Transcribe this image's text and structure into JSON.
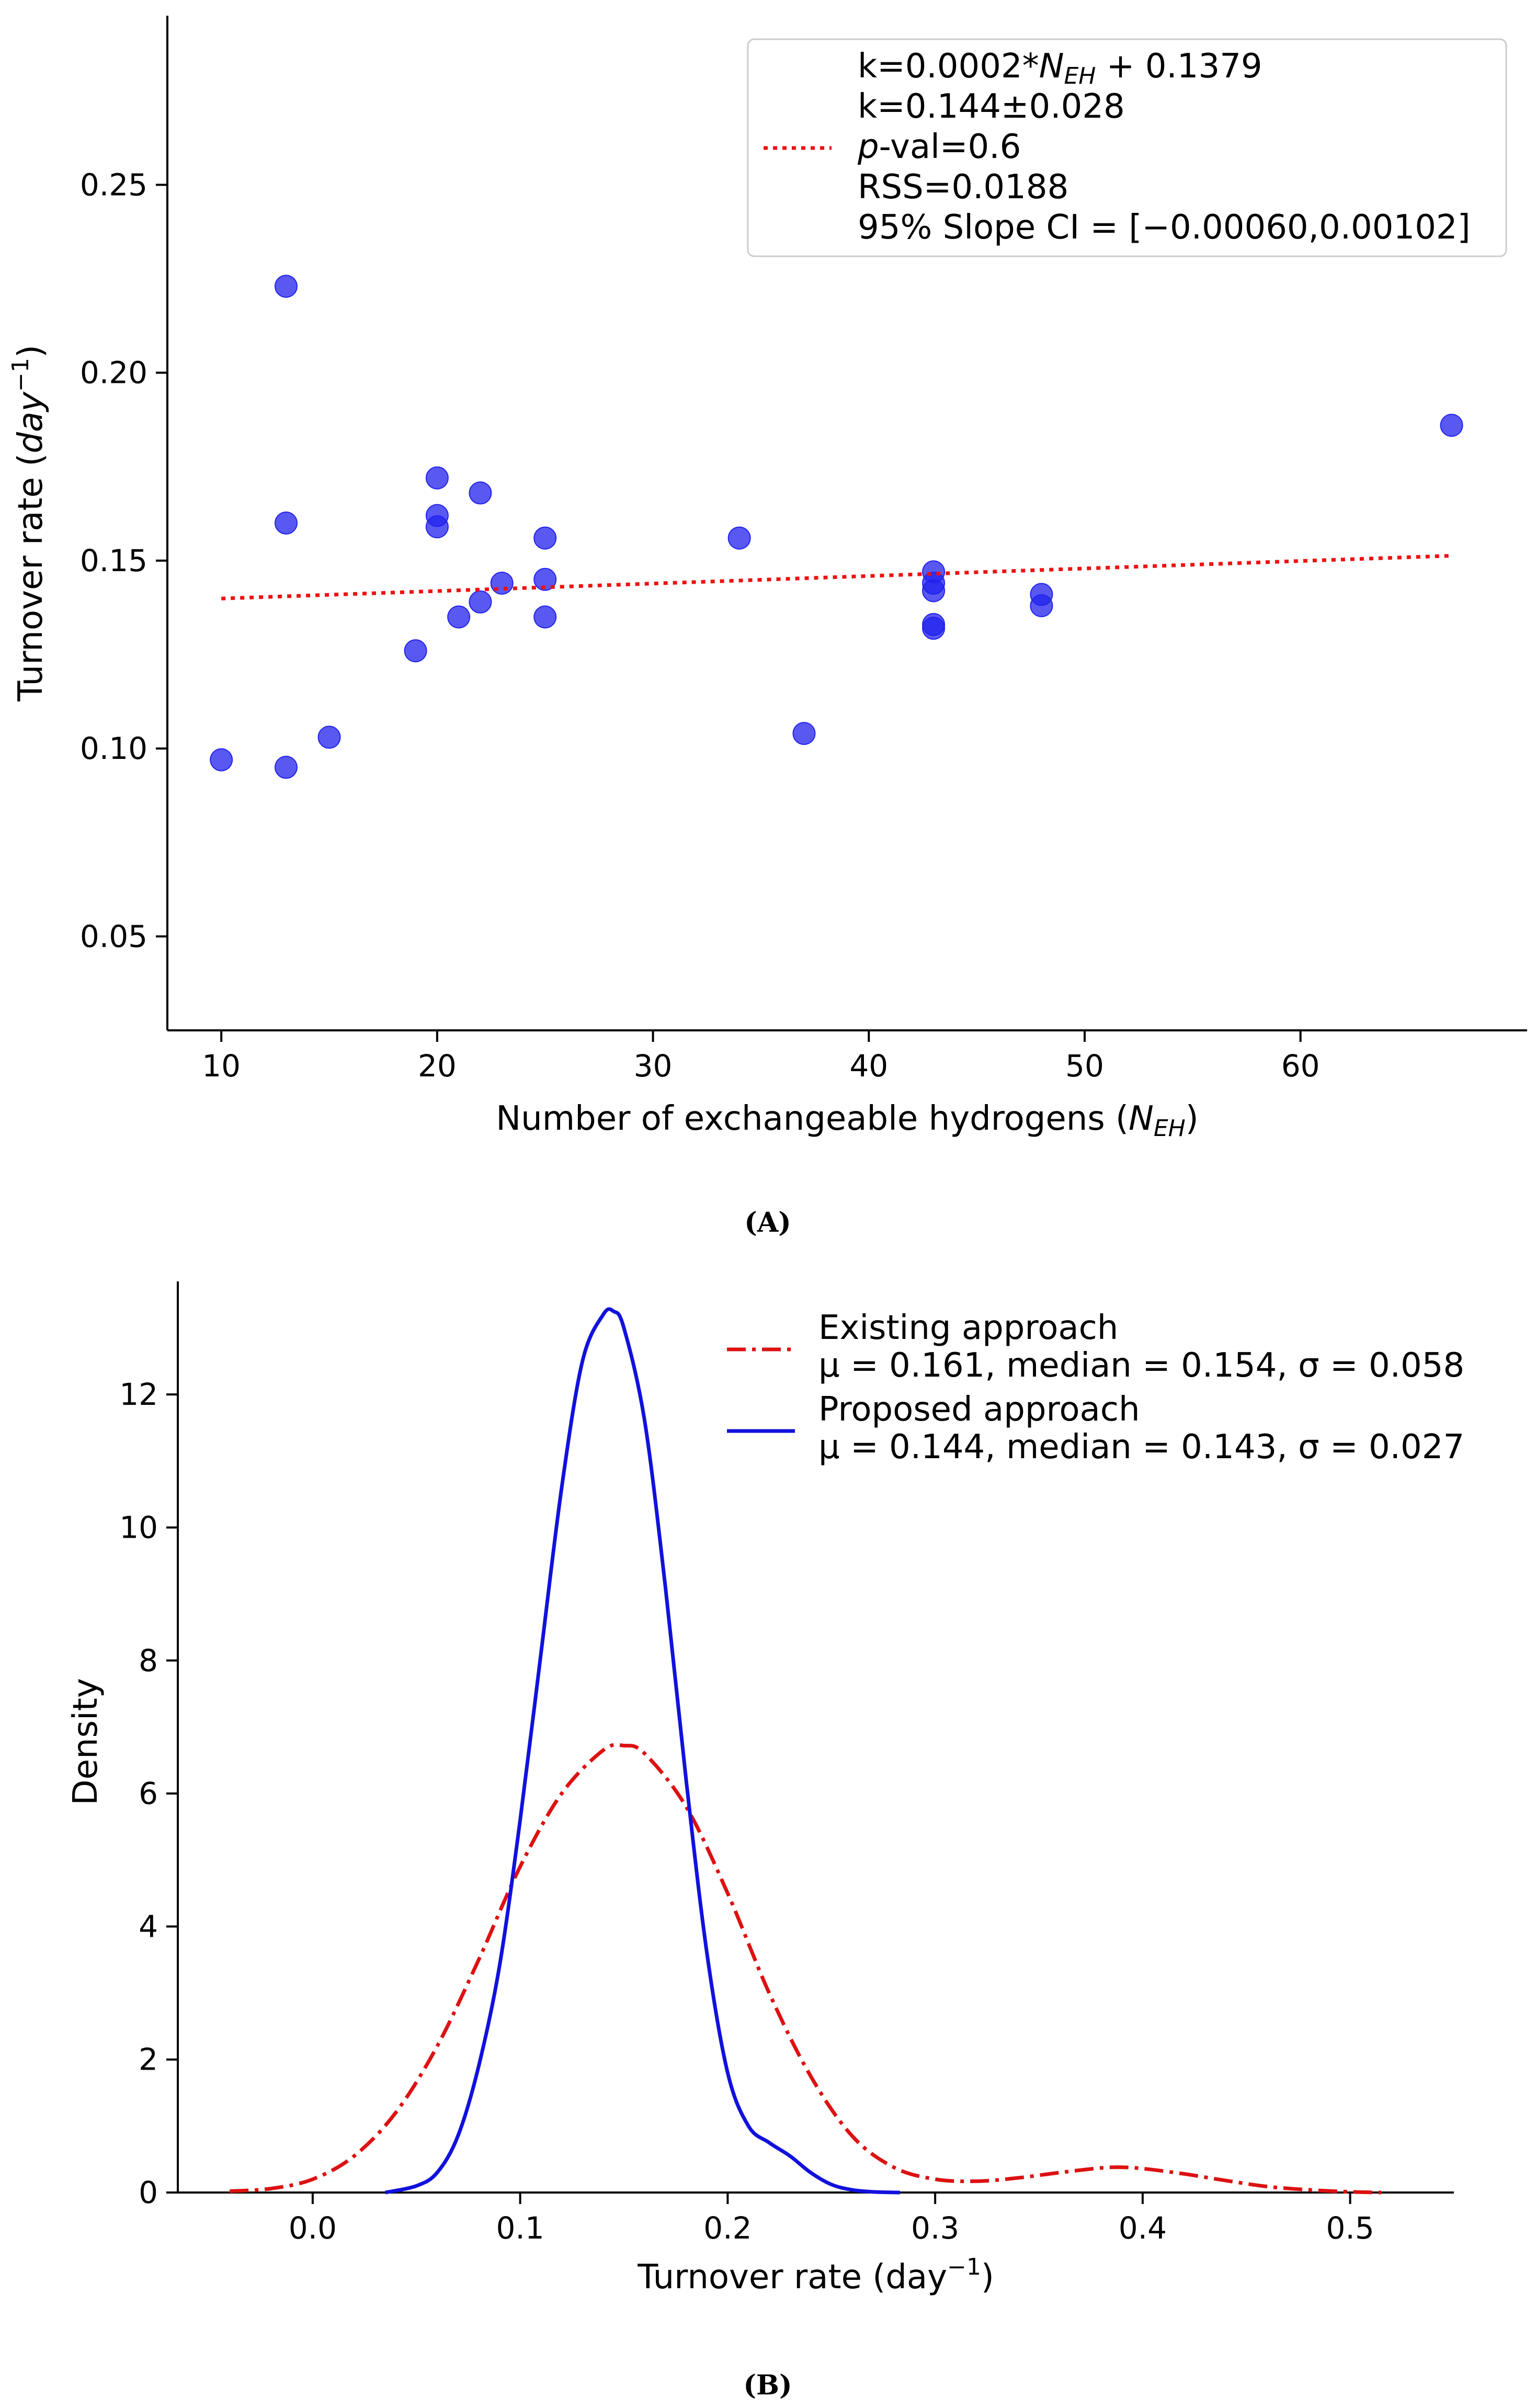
{
  "chart_data": [
    {
      "panel": "(A)",
      "type": "scatter",
      "title": "",
      "xlabel_main": "Number of exchangeable hydrogens (",
      "xlabel_sym": "N",
      "xlabel_sub": "EH",
      "xlabel_end": ")",
      "ylabel_main": "Turnover rate (",
      "ylabel_unit": "day",
      "ylabel_exp": "−1",
      "ylabel_end": ")",
      "xlim": [
        7.5,
        70.5
      ],
      "ylim": [
        0.025,
        0.295
      ],
      "xticks": [
        10,
        20,
        30,
        40,
        50,
        60
      ],
      "xtick_labels": [
        "10",
        "20",
        "30",
        "40",
        "50",
        "60"
      ],
      "yticks": [
        0.05,
        0.1,
        0.15,
        0.2,
        0.25
      ],
      "ytick_labels": [
        "0.05",
        "0.10",
        "0.15",
        "0.20",
        "0.25"
      ],
      "series": [
        {
          "name": "data points",
          "type": "scatter",
          "color": "#2222ee",
          "x": [
            10,
            13,
            13,
            13,
            15,
            19,
            20,
            20,
            20,
            21,
            22,
            22,
            23,
            25,
            25,
            25,
            34,
            37,
            43,
            43,
            43,
            43,
            43,
            48,
            48,
            67
          ],
          "y": [
            0.097,
            0.095,
            0.16,
            0.223,
            0.103,
            0.126,
            0.172,
            0.162,
            0.159,
            0.135,
            0.168,
            0.139,
            0.144,
            0.156,
            0.145,
            0.135,
            0.156,
            0.104,
            0.147,
            0.144,
            0.142,
            0.133,
            0.132,
            0.141,
            0.138,
            0.186
          ]
        },
        {
          "name": "linear fit",
          "type": "line",
          "style": "dotted",
          "color": "#ee1111",
          "slope": 0.0002,
          "intercept": 0.1379,
          "x_range": [
            10,
            67
          ]
        }
      ],
      "legend": {
        "placement": "top-right",
        "line1_pre": "k=0.0002*",
        "line1_sym": "N",
        "line1_sub": "EH",
        "line1_post": " + 0.1379",
        "line2": "k=0.144±0.028",
        "line3_sym": "p",
        "line3_post": "-val=0.6",
        "line4": "RSS=0.0188",
        "line5": "95% Slope CI = [−0.00060,0.00102]"
      }
    },
    {
      "panel": "(B)",
      "type": "line",
      "title": "",
      "xlabel_main": "Turnover rate (day",
      "xlabel_exp": "−1",
      "xlabel_end": ")",
      "ylabel": "Density",
      "xlim": [
        -0.065,
        0.55
      ],
      "ylim": [
        0,
        13.7
      ],
      "xticks": [
        0.0,
        0.1,
        0.2,
        0.3,
        0.4,
        0.5
      ],
      "xtick_labels": [
        "0.0",
        "0.1",
        "0.2",
        "0.3",
        "0.4",
        "0.5"
      ],
      "yticks": [
        0,
        2,
        4,
        6,
        8,
        10,
        12
      ],
      "ytick_labels": [
        "0",
        "2",
        "4",
        "6",
        "8",
        "10",
        "12"
      ],
      "series": [
        {
          "name": "Existing approach",
          "stats": "μ = 0.161, median = 0.154, σ = 0.058",
          "style": "dashdot",
          "color": "#dd1111",
          "x": [
            -0.04,
            -0.02,
            0.0,
            0.02,
            0.04,
            0.06,
            0.08,
            0.1,
            0.12,
            0.14,
            0.15,
            0.16,
            0.18,
            0.2,
            0.22,
            0.24,
            0.26,
            0.28,
            0.3,
            0.32,
            0.34,
            0.36,
            0.38,
            0.39,
            0.4,
            0.42,
            0.44,
            0.46,
            0.48,
            0.5,
            0.515
          ],
          "y": [
            0.02,
            0.06,
            0.2,
            0.55,
            1.2,
            2.2,
            3.5,
            4.9,
            6.0,
            6.65,
            6.72,
            6.6,
            5.8,
            4.5,
            3.0,
            1.75,
            0.85,
            0.38,
            0.2,
            0.17,
            0.22,
            0.3,
            0.37,
            0.38,
            0.36,
            0.28,
            0.18,
            0.09,
            0.04,
            0.01,
            0.0
          ]
        },
        {
          "name": "Proposed approach",
          "stats": "μ = 0.144, median = 0.143, σ = 0.027",
          "style": "solid",
          "color": "#1111dd",
          "x": [
            0.035,
            0.05,
            0.06,
            0.07,
            0.08,
            0.09,
            0.1,
            0.11,
            0.12,
            0.13,
            0.14,
            0.145,
            0.15,
            0.16,
            0.17,
            0.18,
            0.19,
            0.2,
            0.21,
            0.22,
            0.23,
            0.24,
            0.25,
            0.26,
            0.27,
            0.283
          ],
          "y": [
            0.0,
            0.1,
            0.3,
            0.85,
            1.9,
            3.4,
            5.6,
            8.1,
            10.6,
            12.5,
            13.2,
            13.25,
            13.0,
            11.6,
            9.1,
            6.2,
            3.6,
            1.8,
            1.0,
            0.75,
            0.55,
            0.3,
            0.12,
            0.04,
            0.01,
            0.0
          ]
        }
      ],
      "legend": {
        "placement": "top-right"
      }
    }
  ]
}
